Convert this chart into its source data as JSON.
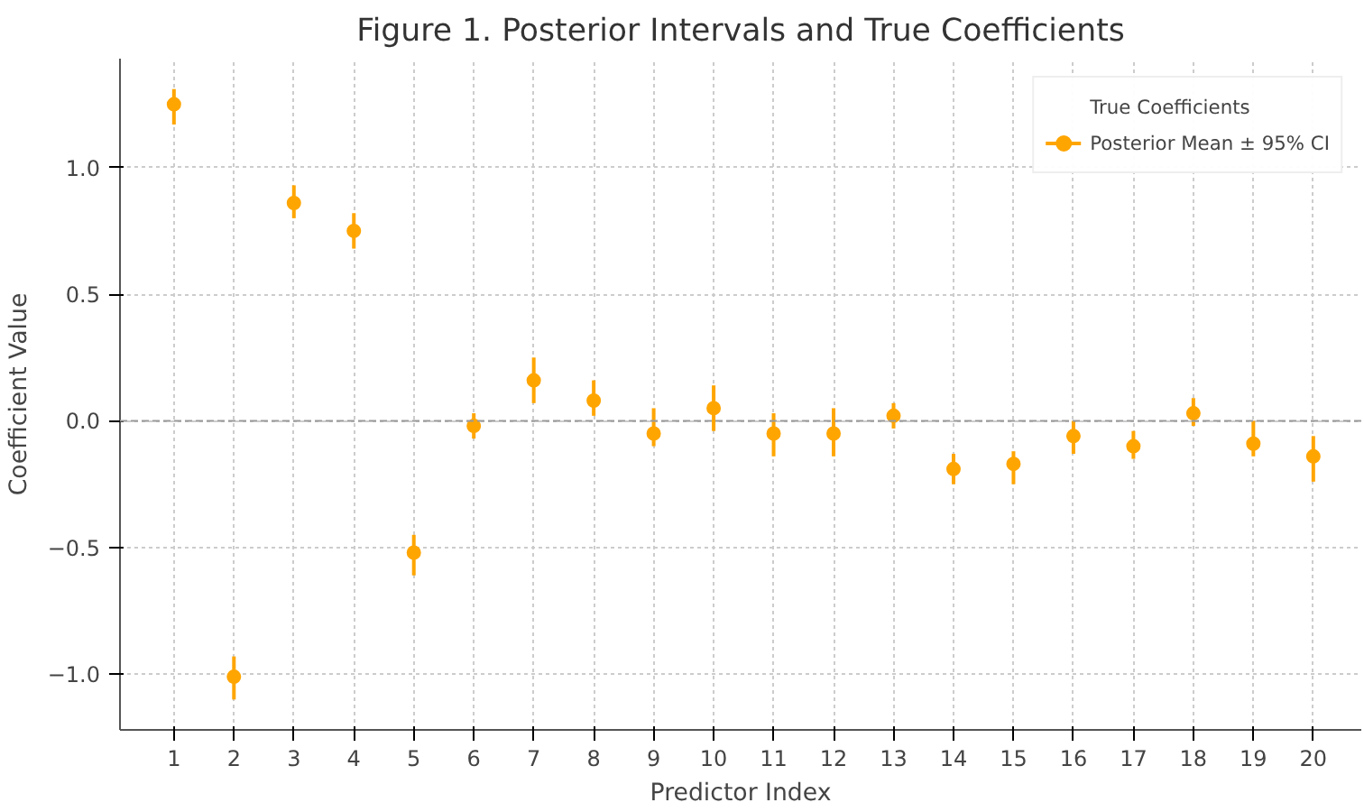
{
  "chart_data": {
    "type": "scatter",
    "title": "Figure 1. Posterior Intervals and True Coefficients",
    "xlabel": "Predictor Index",
    "ylabel": "Coefficient Value",
    "x": [
      1,
      2,
      3,
      4,
      5,
      6,
      7,
      8,
      9,
      10,
      11,
      12,
      13,
      14,
      15,
      16,
      17,
      18,
      19,
      20
    ],
    "xlim": [
      0.1,
      20.8
    ],
    "xticks": [
      1,
      2,
      3,
      4,
      5,
      6,
      7,
      8,
      9,
      10,
      11,
      12,
      13,
      14,
      15,
      16,
      17,
      18,
      19,
      20
    ],
    "ylim": [
      -1.22,
      1.43
    ],
    "yticks": [
      {
        "value": -1.0,
        "label": "−1.0"
      },
      {
        "value": -0.5,
        "label": "−0.5"
      },
      {
        "value": 0.0,
        "label": "0.0"
      },
      {
        "value": 0.5,
        "label": "0.5"
      },
      {
        "value": 1.0,
        "label": "1.0"
      }
    ],
    "series": [
      {
        "name": "True Coefficients",
        "values": [
          null,
          null,
          null,
          null,
          null,
          null,
          null,
          null,
          null,
          null,
          null,
          null,
          null,
          null,
          null,
          null,
          null,
          null,
          null,
          null
        ]
      },
      {
        "name": "Posterior Mean ± 95% CI",
        "color": "#ffa500",
        "values": [
          1.25,
          -1.01,
          0.86,
          0.75,
          -0.52,
          -0.02,
          0.16,
          0.08,
          -0.05,
          0.05,
          -0.05,
          -0.05,
          0.02,
          -0.19,
          -0.17,
          -0.06,
          -0.1,
          0.03,
          -0.09,
          -0.14
        ],
        "errors": [
          [
            1.17,
            1.31
          ],
          [
            -1.1,
            -0.93
          ],
          [
            0.8,
            0.93
          ],
          [
            0.68,
            0.82
          ],
          [
            -0.61,
            -0.45
          ],
          [
            -0.07,
            0.03
          ],
          [
            0.07,
            0.25
          ],
          [
            0.02,
            0.16
          ],
          [
            -0.1,
            0.05
          ],
          [
            -0.04,
            0.14
          ],
          [
            -0.14,
            0.03
          ],
          [
            -0.14,
            0.05
          ],
          [
            -0.03,
            0.07
          ],
          [
            -0.25,
            -0.13
          ],
          [
            -0.25,
            -0.12
          ],
          [
            -0.13,
            0.0
          ],
          [
            -0.15,
            -0.04
          ],
          [
            -0.02,
            0.09
          ],
          [
            -0.14,
            0.0
          ],
          [
            -0.24,
            -0.06
          ]
        ]
      }
    ],
    "ref_lines": [
      {
        "axis": "y",
        "value": 0,
        "color": "#999999",
        "line_style": "dashed"
      }
    ],
    "grid": true,
    "legend": "top right",
    "marker": "circle"
  }
}
